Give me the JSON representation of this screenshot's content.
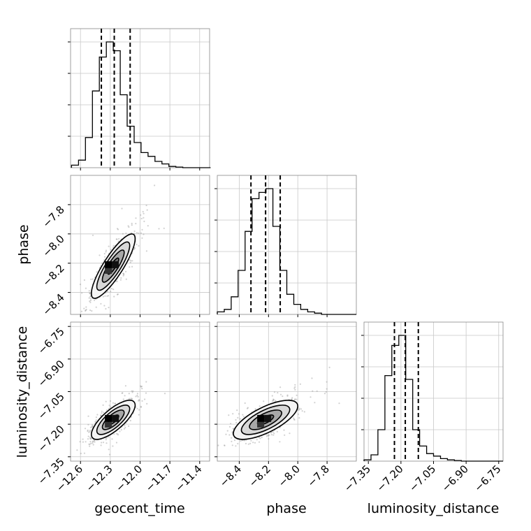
{
  "chart_data": {
    "type": "corner",
    "parameters": [
      {
        "name": "geocent_time",
        "range": [
          -12.7,
          -11.3
        ],
        "ticks": [
          -12.6,
          -12.3,
          -12.0,
          -11.7,
          -11.4
        ],
        "tick_labels": [
          "−12.6",
          "−12.3",
          "−12.0",
          "−11.7",
          "−11.4"
        ],
        "quantiles": [
          -12.39,
          -12.26,
          -12.1
        ],
        "hist_bins": [
          -12.69,
          -12.62,
          -12.55,
          -12.48,
          -12.41,
          -12.34,
          -12.27,
          -12.2,
          -12.13,
          -12.06,
          -11.99,
          -11.92,
          -11.85,
          -11.78,
          -11.71,
          -11.64,
          -11.57,
          -11.5,
          -11.43,
          -11.36,
          -11.29
        ],
        "hist_counts": [
          0.02,
          0.06,
          0.24,
          0.61,
          0.88,
          1.0,
          0.93,
          0.58,
          0.33,
          0.2,
          0.12,
          0.09,
          0.05,
          0.03,
          0.01,
          0.005,
          0,
          0,
          0,
          0
        ]
      },
      {
        "name": "phase",
        "range": [
          -8.55,
          -7.6
        ],
        "ticks": [
          -8.4,
          -8.2,
          -8.0,
          -7.8
        ],
        "tick_labels": [
          "−8.4",
          "−8.2",
          "−8.0",
          "−7.8"
        ],
        "quantiles": [
          -8.32,
          -8.22,
          -8.12
        ],
        "hist_bins": [
          -8.55,
          -8.5025,
          -8.455,
          -8.4075,
          -8.36,
          -8.3125,
          -8.265,
          -8.2175,
          -8.17,
          -8.1225,
          -8.075,
          -8.0275,
          -7.98,
          -7.9325,
          -7.885,
          -7.8375,
          -7.79,
          -7.7425,
          -7.695,
          -7.6475,
          -7.6
        ],
        "hist_counts": [
          0.02,
          0.04,
          0.14,
          0.35,
          0.66,
          0.92,
          0.97,
          1.0,
          0.7,
          0.35,
          0.16,
          0.08,
          0.04,
          0.02,
          0.01,
          0,
          0,
          0,
          0,
          0
        ]
      },
      {
        "name": "luminosity_distance",
        "range": [
          -7.37,
          -6.73
        ],
        "ticks": [
          -7.35,
          -7.2,
          -7.05,
          -6.9,
          -6.75
        ],
        "tick_labels": [
          "−7.35",
          "−7.20",
          "−7.05",
          "−6.90",
          "−6.75"
        ],
        "quantiles": [
          -7.23,
          -7.18,
          -7.12
        ],
        "hist_bins": [
          -7.37,
          -7.338,
          -7.306,
          -7.274,
          -7.242,
          -7.21,
          -7.178,
          -7.146,
          -7.114,
          -7.082,
          -7.05,
          -7.018,
          -6.986,
          -6.954,
          -6.922,
          -6.89,
          -6.858,
          -6.826,
          -6.794,
          -6.762,
          -6.73
        ],
        "hist_counts": [
          0.01,
          0.05,
          0.25,
          0.68,
          0.92,
          1.0,
          0.65,
          0.25,
          0.12,
          0.06,
          0.04,
          0.02,
          0.01,
          0.005,
          0,
          0,
          0,
          0,
          0,
          0
        ]
      }
    ],
    "pairs": [
      {
        "x": 0,
        "y": 1,
        "mean": [
          -12.27,
          -8.22
        ],
        "std": [
          0.11,
          0.11
        ],
        "corr": 0.85
      },
      {
        "x": 0,
        "y": 2,
        "mean": [
          -12.27,
          -7.18
        ],
        "std": [
          0.11,
          0.045
        ],
        "corr": 0.75
      },
      {
        "x": 1,
        "y": 2,
        "mean": [
          -8.22,
          -7.18
        ],
        "std": [
          0.11,
          0.045
        ],
        "corr": 0.7
      }
    ],
    "contour_levels_sigma": [
      0.5,
      1.0,
      1.5,
      2.0
    ],
    "grid": true
  }
}
